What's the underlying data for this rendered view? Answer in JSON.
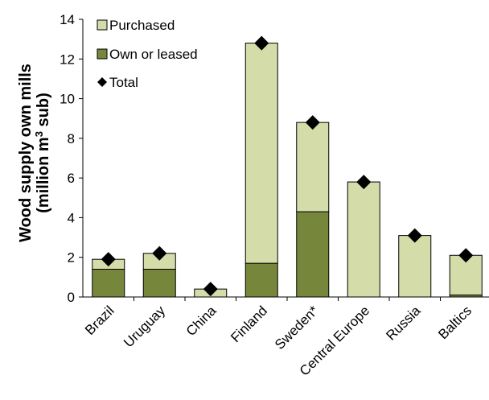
{
  "chart_data": {
    "type": "bar",
    "stacked": true,
    "categories": [
      "Brazil",
      "Uruguay",
      "China",
      "Finland",
      "Sweden*",
      "Central Europe",
      "Russia",
      "Baltics"
    ],
    "series": [
      {
        "name": "Own or leased",
        "color": "#76863a",
        "values": [
          1.4,
          1.4,
          0.0,
          1.7,
          4.3,
          0.0,
          0.0,
          0.1
        ]
      },
      {
        "name": "Purchased",
        "color": "#d4dcaa",
        "values": [
          0.5,
          0.8,
          0.4,
          11.1,
          4.5,
          5.8,
          3.1,
          2.0
        ]
      }
    ],
    "total": {
      "name": "Total",
      "marker": "diamond",
      "color": "#000000",
      "values": [
        1.9,
        2.2,
        0.4,
        12.8,
        8.8,
        5.8,
        3.1,
        2.1
      ]
    },
    "ylabel_line1": "Wood supply own mills",
    "ylabel_line2_pre": "(million m",
    "ylabel_line2_sup": "3",
    "ylabel_line2_post": " sub)",
    "ylim": [
      0,
      14
    ],
    "yticks": [
      "0",
      "2",
      "4",
      "6",
      "8",
      "10",
      "12",
      "14"
    ],
    "legend_position": "top-left",
    "legend": [
      "Purchased",
      "Own or leased",
      "Total"
    ],
    "grid": false
  }
}
